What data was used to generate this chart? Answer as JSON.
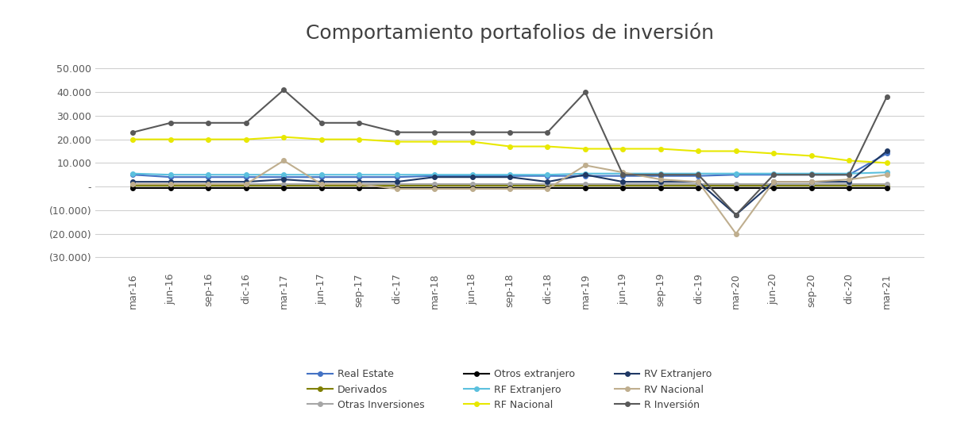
{
  "title_text": "Comportamiento portafolios de inversión",
  "x_labels": [
    "mar-16",
    "jun-16",
    "sep-16",
    "dic-16",
    "mar-17",
    "jun-17",
    "sep-17",
    "dic-17",
    "mar-18",
    "jun-18",
    "sep-18",
    "dic-18",
    "mar-19",
    "jun-19",
    "sep-19",
    "dic-19",
    "mar-20",
    "jun-20",
    "sep-20",
    "dic-20",
    "mar-21"
  ],
  "series": [
    {
      "name": "Real Estate",
      "color": "#4472C4",
      "values": [
        5000,
        4000,
        4000,
        4000,
        4000,
        4000,
        4000,
        4000,
        4500,
        4500,
        4500,
        4500,
        4500,
        4500,
        4500,
        4500,
        5000,
        5000,
        5000,
        5000,
        14000
      ]
    },
    {
      "name": "Derivados",
      "color": "#7f7f00",
      "values": [
        500,
        500,
        500,
        500,
        500,
        500,
        500,
        500,
        500,
        500,
        500,
        500,
        500,
        500,
        500,
        500,
        500,
        500,
        500,
        500,
        500
      ]
    },
    {
      "name": "Otras Inversiones",
      "color": "#a6a6a6",
      "values": [
        1000,
        1000,
        1000,
        1000,
        1000,
        1000,
        1000,
        1000,
        1000,
        1000,
        1000,
        1000,
        1000,
        1000,
        1000,
        1000,
        1000,
        1000,
        1000,
        1000,
        1000
      ]
    },
    {
      "name": "Otros extranjero",
      "color": "#000000",
      "values": [
        -500,
        -500,
        -500,
        -500,
        -500,
        -500,
        -500,
        -500,
        -500,
        -500,
        -500,
        -500,
        -500,
        -500,
        -500,
        -500,
        -500,
        -500,
        -500,
        -500,
        -500
      ]
    },
    {
      "name": "RF Extranjero",
      "color": "#5bc0de",
      "values": [
        5500,
        5000,
        5000,
        5000,
        5000,
        5000,
        5000,
        5000,
        5000,
        5000,
        5000,
        5000,
        5500,
        5500,
        5500,
        5500,
        5500,
        5500,
        5500,
        5500,
        6000
      ]
    },
    {
      "name": "RF Nacional",
      "color": "#e8e800",
      "values": [
        20000,
        20000,
        20000,
        20000,
        21000,
        20000,
        20000,
        19000,
        19000,
        19000,
        17000,
        17000,
        16000,
        16000,
        16000,
        15000,
        15000,
        14000,
        13000,
        11000,
        10000
      ]
    },
    {
      "name": "RV Extranjero",
      "color": "#1f3864",
      "values": [
        2000,
        2000,
        2000,
        2000,
        3000,
        2000,
        2000,
        2000,
        4000,
        4000,
        4000,
        2000,
        5000,
        2000,
        2000,
        2000,
        -12000,
        2000,
        2000,
        2000,
        15000
      ]
    },
    {
      "name": "RV Nacional",
      "color": "#bfae8e",
      "values": [
        1000,
        1000,
        1000,
        1000,
        11000,
        1000,
        1000,
        -1000,
        -1000,
        -1000,
        -1000,
        -1000,
        9000,
        6000,
        3000,
        2000,
        -20000,
        2000,
        2000,
        3000,
        5000
      ]
    },
    {
      "name": "R Inversión",
      "color": "#595959",
      "values": [
        23000,
        27000,
        27000,
        27000,
        41000,
        27000,
        27000,
        23000,
        23000,
        23000,
        23000,
        23000,
        40000,
        5000,
        5000,
        5000,
        -12000,
        5000,
        5000,
        5000,
        38000
      ]
    }
  ],
  "legend_order": [
    0,
    1,
    2,
    3,
    4,
    5,
    6,
    7,
    8
  ],
  "ylim": [
    -35000,
    57000
  ],
  "yticks": [
    50000,
    40000,
    30000,
    20000,
    10000,
    0,
    -10000,
    -20000,
    -30000
  ],
  "background_color": "#ffffff",
  "marker": "o",
  "marker_size": 4,
  "linewidth": 1.5,
  "title_fontsize": 18,
  "tick_fontsize": 9,
  "legend_fontsize": 9
}
